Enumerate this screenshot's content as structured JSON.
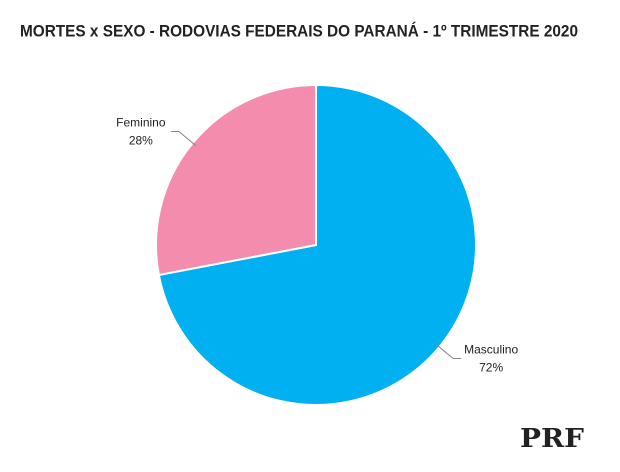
{
  "chart_data": {
    "type": "pie",
    "title": "MORTES x SEXO - RODOVIAS FEDERAIS DO PARANÁ - 1º TRIMESTRE 2020",
    "categories": [
      "Masculino",
      "Feminino"
    ],
    "values": [
      72,
      28
    ],
    "value_labels": [
      "72%",
      "28%"
    ],
    "colors": [
      "#00b0f0",
      "#f48cad"
    ]
  },
  "logo": "PRF"
}
